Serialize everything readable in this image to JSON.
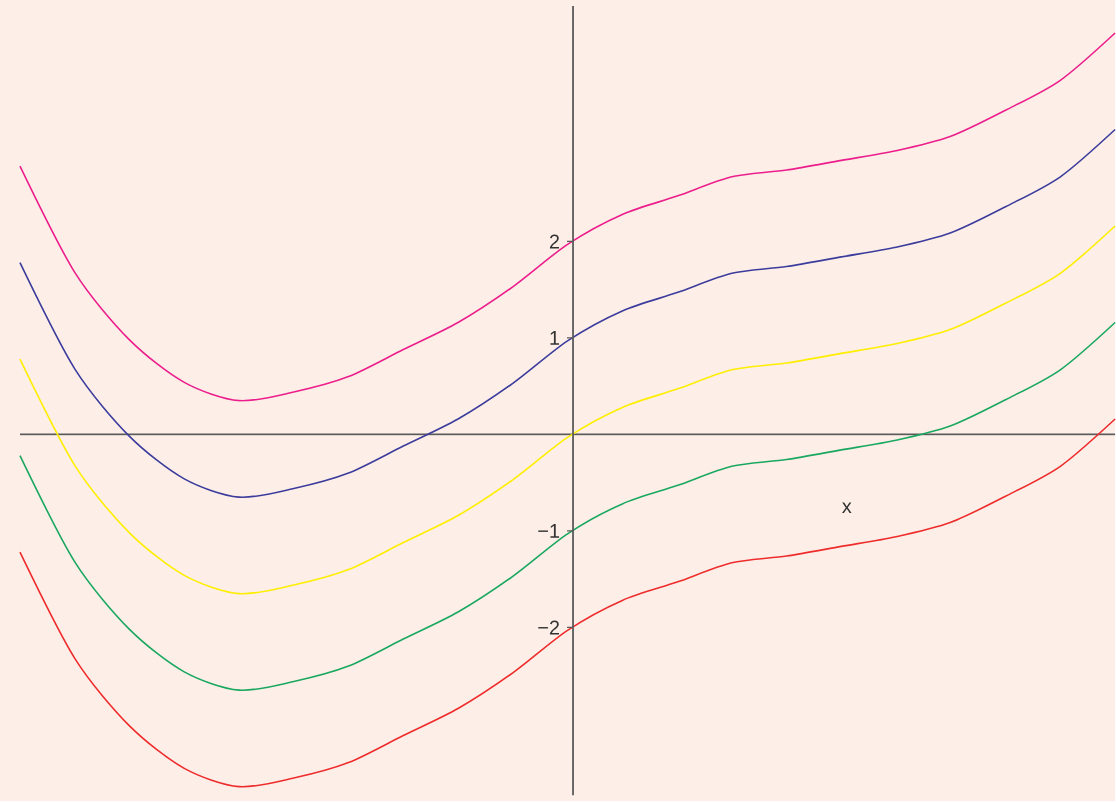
{
  "chart_data": {
    "type": "line",
    "xlabel": "x",
    "categories": [
      null,
      null,
      null,
      null,
      null,
      null,
      null,
      null,
      null,
      null,
      null,
      null,
      null,
      null,
      null,
      null,
      null,
      null,
      null,
      null,
      null
    ],
    "series": [
      {
        "color": "#ec1e8c",
        "values": [
          2.78,
          1.68,
          0.98,
          0.54,
          0.35,
          0.44,
          0.6,
          0.88,
          1.16,
          1.53,
          1.97,
          2.28,
          2.47,
          2.67,
          2.74,
          2.84,
          2.94,
          3.09,
          3.36,
          3.67,
          4.16
        ]
      },
      {
        "color": "#3c3c9c",
        "values": [
          1.78,
          0.68,
          -0.02,
          -0.46,
          -0.65,
          -0.56,
          -0.4,
          -0.12,
          0.16,
          0.53,
          0.97,
          1.28,
          1.47,
          1.67,
          1.74,
          1.84,
          1.94,
          2.09,
          2.36,
          2.67,
          3.16
        ]
      },
      {
        "color": "#ffee00",
        "values": [
          0.78,
          -0.32,
          -1.02,
          -1.46,
          -1.65,
          -1.56,
          -1.4,
          -1.12,
          -0.84,
          -0.47,
          -0.03,
          0.28,
          0.47,
          0.67,
          0.74,
          0.84,
          0.94,
          1.09,
          1.36,
          1.67,
          2.16
        ]
      },
      {
        "color": "#1aa860",
        "values": [
          -0.22,
          -1.32,
          -2.02,
          -2.46,
          -2.65,
          -2.56,
          -2.4,
          -2.12,
          -1.84,
          -1.47,
          -1.03,
          -0.72,
          -0.53,
          -0.33,
          -0.26,
          -0.16,
          -0.06,
          0.09,
          0.36,
          0.67,
          1.16
        ]
      },
      {
        "color": "#ee2c2c",
        "values": [
          -1.22,
          -2.32,
          -3.02,
          -3.46,
          -3.65,
          -3.56,
          -3.4,
          -3.12,
          -2.84,
          -2.47,
          -2.03,
          -1.72,
          -1.53,
          -1.33,
          -1.26,
          -1.16,
          -1.06,
          -0.91,
          -0.64,
          -0.33,
          0.16
        ]
      }
    ],
    "ylim": [
      -3.74,
      4.44
    ],
    "yticks": [
      {
        "value": -2,
        "label": "−2"
      },
      {
        "value": -1,
        "label": "−1"
      },
      {
        "value": 1,
        "label": "1"
      },
      {
        "value": 2,
        "label": "2"
      }
    ],
    "tick_labels": "y"
  }
}
